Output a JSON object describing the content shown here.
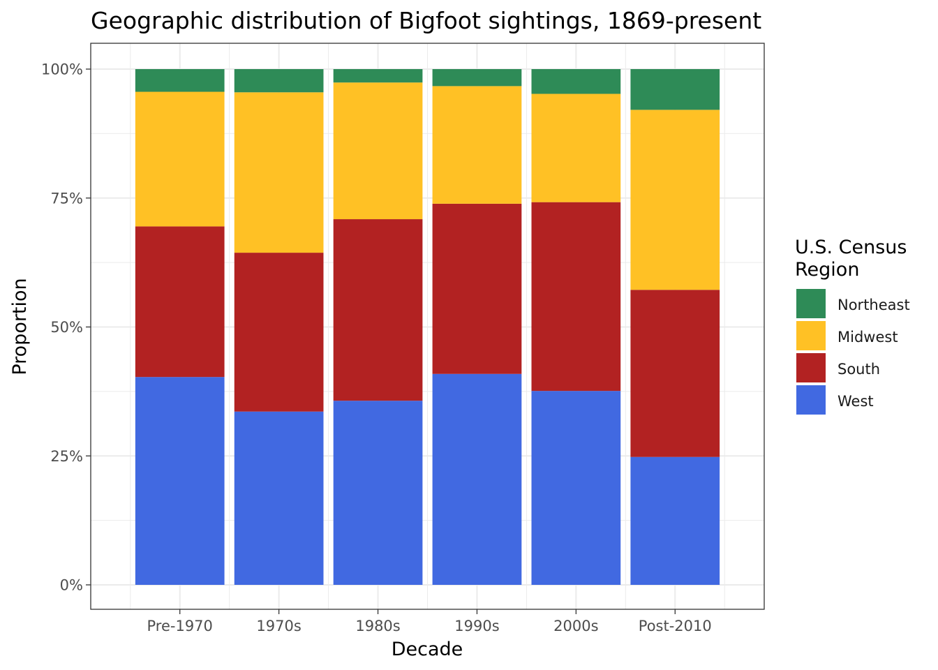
{
  "chart_data": {
    "type": "bar",
    "stacked": true,
    "normalized": true,
    "title": "Geographic distribution of Bigfoot sightings, 1869-present",
    "xlabel": "Decade",
    "ylabel": "Proportion",
    "categories": [
      "Pre-1970",
      "1970s",
      "1980s",
      "1990s",
      "2000s",
      "Post-2010"
    ],
    "ylim": [
      0,
      1
    ],
    "yticks": [
      0,
      0.25,
      0.5,
      0.75,
      1
    ],
    "ytick_labels": [
      "0%",
      "25%",
      "50%",
      "75%",
      "100%"
    ],
    "series": [
      {
        "name": "West",
        "color": "#4169E1",
        "values": [
          0.403,
          0.336,
          0.357,
          0.409,
          0.376,
          0.248
        ]
      },
      {
        "name": "South",
        "color": "#B22222",
        "values": [
          0.292,
          0.308,
          0.352,
          0.33,
          0.366,
          0.324
        ]
      },
      {
        "name": "Midwest",
        "color": "#FFC125",
        "values": [
          0.261,
          0.311,
          0.265,
          0.228,
          0.21,
          0.349
        ]
      },
      {
        "name": "Northeast",
        "color": "#2E8B57",
        "values": [
          0.044,
          0.045,
          0.026,
          0.033,
          0.048,
          0.079
        ]
      }
    ],
    "legend": {
      "title_lines": [
        "U.S. Census",
        "Region"
      ],
      "placement": "right",
      "order": [
        "Northeast",
        "Midwest",
        "South",
        "West"
      ]
    },
    "grid": true,
    "theme": "bw"
  }
}
